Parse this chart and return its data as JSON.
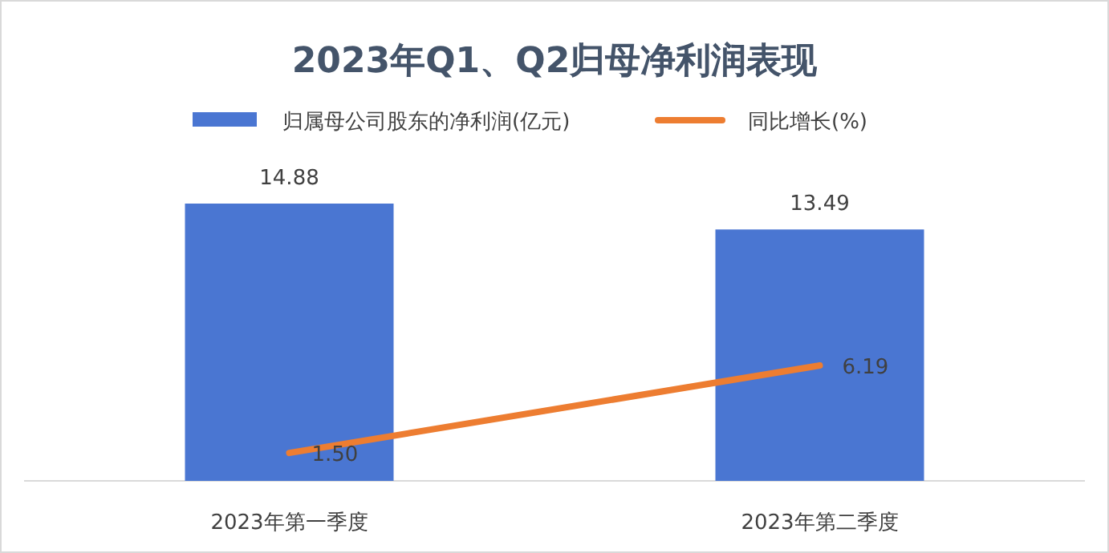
{
  "chart_data": {
    "type": "bar",
    "title": "2023年Q1、Q2归母净利润表现",
    "categories": [
      "2023年第一季度",
      "2023年第二季度"
    ],
    "series": [
      {
        "name": "归属母公司股东的净利润(亿元)",
        "color": "#4a76d2",
        "values": [
          14.88,
          13.49
        ],
        "value_labels": [
          "14.88",
          "13.49"
        ]
      },
      {
        "name": "同比增长(%)",
        "type": "line",
        "color": "#ed7d31",
        "values": [
          1.5,
          6.19
        ],
        "value_labels": [
          "1.50",
          "6.19"
        ]
      }
    ],
    "legend": "top",
    "tick_labels": "x"
  }
}
